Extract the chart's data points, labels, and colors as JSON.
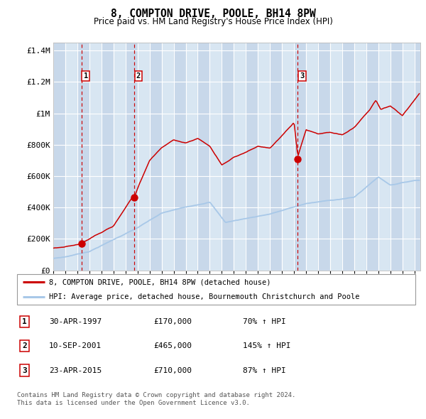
{
  "title": "8, COMPTON DRIVE, POOLE, BH14 8PW",
  "subtitle": "Price paid vs. HM Land Registry's House Price Index (HPI)",
  "hpi_color": "#a8c8e8",
  "price_color": "#cc0000",
  "ylim": [
    0,
    1450000
  ],
  "yticks": [
    0,
    200000,
    400000,
    600000,
    800000,
    1000000,
    1200000,
    1400000
  ],
  "ytick_labels": [
    "£0",
    "£200K",
    "£400K",
    "£600K",
    "£800K",
    "£1M",
    "£1.2M",
    "£1.4M"
  ],
  "xlim_start": 1995.0,
  "xlim_end": 2025.5,
  "sales": [
    {
      "year": 1997.33,
      "price": 170000,
      "label": "1"
    },
    {
      "year": 2001.71,
      "price": 465000,
      "label": "2"
    },
    {
      "year": 2015.31,
      "price": 710000,
      "label": "3"
    }
  ],
  "legend_house_label": "8, COMPTON DRIVE, POOLE, BH14 8PW (detached house)",
  "legend_hpi_label": "HPI: Average price, detached house, Bournemouth Christchurch and Poole",
  "table_rows": [
    {
      "num": "1",
      "date": "30-APR-1997",
      "price": "£170,000",
      "hpi": "70% ↑ HPI"
    },
    {
      "num": "2",
      "date": "10-SEP-2001",
      "price": "£465,000",
      "hpi": "145% ↑ HPI"
    },
    {
      "num": "3",
      "date": "23-APR-2015",
      "price": "£710,000",
      "hpi": "87% ↑ HPI"
    }
  ],
  "footer": "Contains HM Land Registry data © Crown copyright and database right 2024.\nThis data is licensed under the Open Government Licence v3.0."
}
